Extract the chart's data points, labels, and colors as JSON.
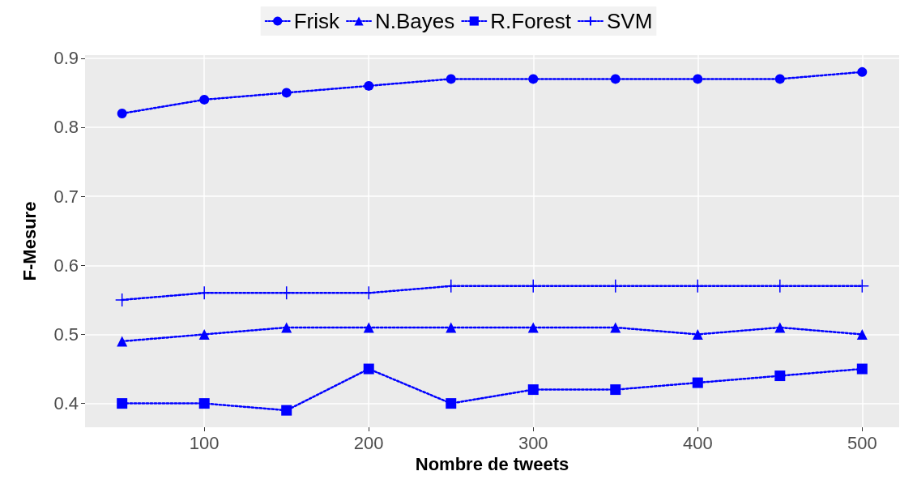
{
  "chart_data": {
    "type": "line",
    "xlabel": "Nombre de tweets",
    "ylabel": "F-Mesure",
    "x": [
      50,
      100,
      150,
      200,
      250,
      300,
      350,
      400,
      450,
      500
    ],
    "xlim": [
      27.5,
      522.5
    ],
    "xticks": [
      100,
      200,
      300,
      400,
      500
    ],
    "ylim": [
      0.3655,
      0.9045
    ],
    "yticks": [
      0.4,
      0.5,
      0.6,
      0.7,
      0.8,
      0.9
    ],
    "grid": true,
    "legend": "top",
    "line_style": "dotted",
    "series": [
      {
        "name": "Frisk",
        "color": "#0000ff",
        "marker": "circle",
        "values": [
          0.82,
          0.84,
          0.85,
          0.86,
          0.87,
          0.87,
          0.87,
          0.87,
          0.87,
          0.88
        ]
      },
      {
        "name": "N.Bayes",
        "color": "#0000ff",
        "marker": "triangle",
        "values": [
          0.49,
          0.5,
          0.51,
          0.51,
          0.51,
          0.51,
          0.51,
          0.5,
          0.51,
          0.5
        ]
      },
      {
        "name": "R.Forest",
        "color": "#0000ff",
        "marker": "square",
        "values": [
          0.4,
          0.4,
          0.39,
          0.45,
          0.4,
          0.42,
          0.42,
          0.43,
          0.44,
          0.45
        ]
      },
      {
        "name": "SVM",
        "color": "#0000ff",
        "marker": "cross",
        "values": [
          0.55,
          0.56,
          0.56,
          0.56,
          0.57,
          0.57,
          0.57,
          0.57,
          0.57,
          0.57
        ]
      }
    ]
  }
}
